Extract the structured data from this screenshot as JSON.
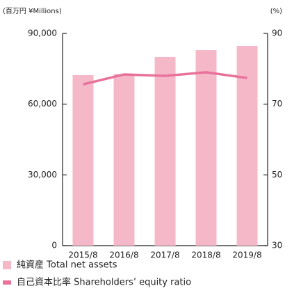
{
  "chart_data": {
    "type": "bar_line",
    "y_axis_label": "(百万円 ¥Millions)",
    "y2_axis_label": "(%)",
    "categories": [
      "2015/8",
      "2016/8",
      "2017/8",
      "2018/8",
      "2019/8"
    ],
    "series": [
      {
        "name": "純資産 Total net assets",
        "type": "bar",
        "color": "#f5b8c9",
        "values": [
          72300,
          72800,
          80000,
          82900,
          84700
        ]
      },
      {
        "name": "自己資本比率 Shareholders’ equity ratio",
        "type": "line",
        "axis": "y2",
        "color": "#e9729b",
        "values": [
          75.6,
          78.4,
          78.0,
          79.0,
          77.4
        ]
      }
    ],
    "ylim": [
      0,
      90000
    ],
    "yticks": [
      0,
      {
        "value": 30000,
        "label": "30,000"
      },
      {
        "value": 60000,
        "label": "60,000"
      },
      {
        "value": 90000,
        "label": "90,000"
      }
    ],
    "y2lim": [
      30,
      90
    ],
    "y2ticks": [
      30,
      50,
      70,
      90
    ]
  }
}
